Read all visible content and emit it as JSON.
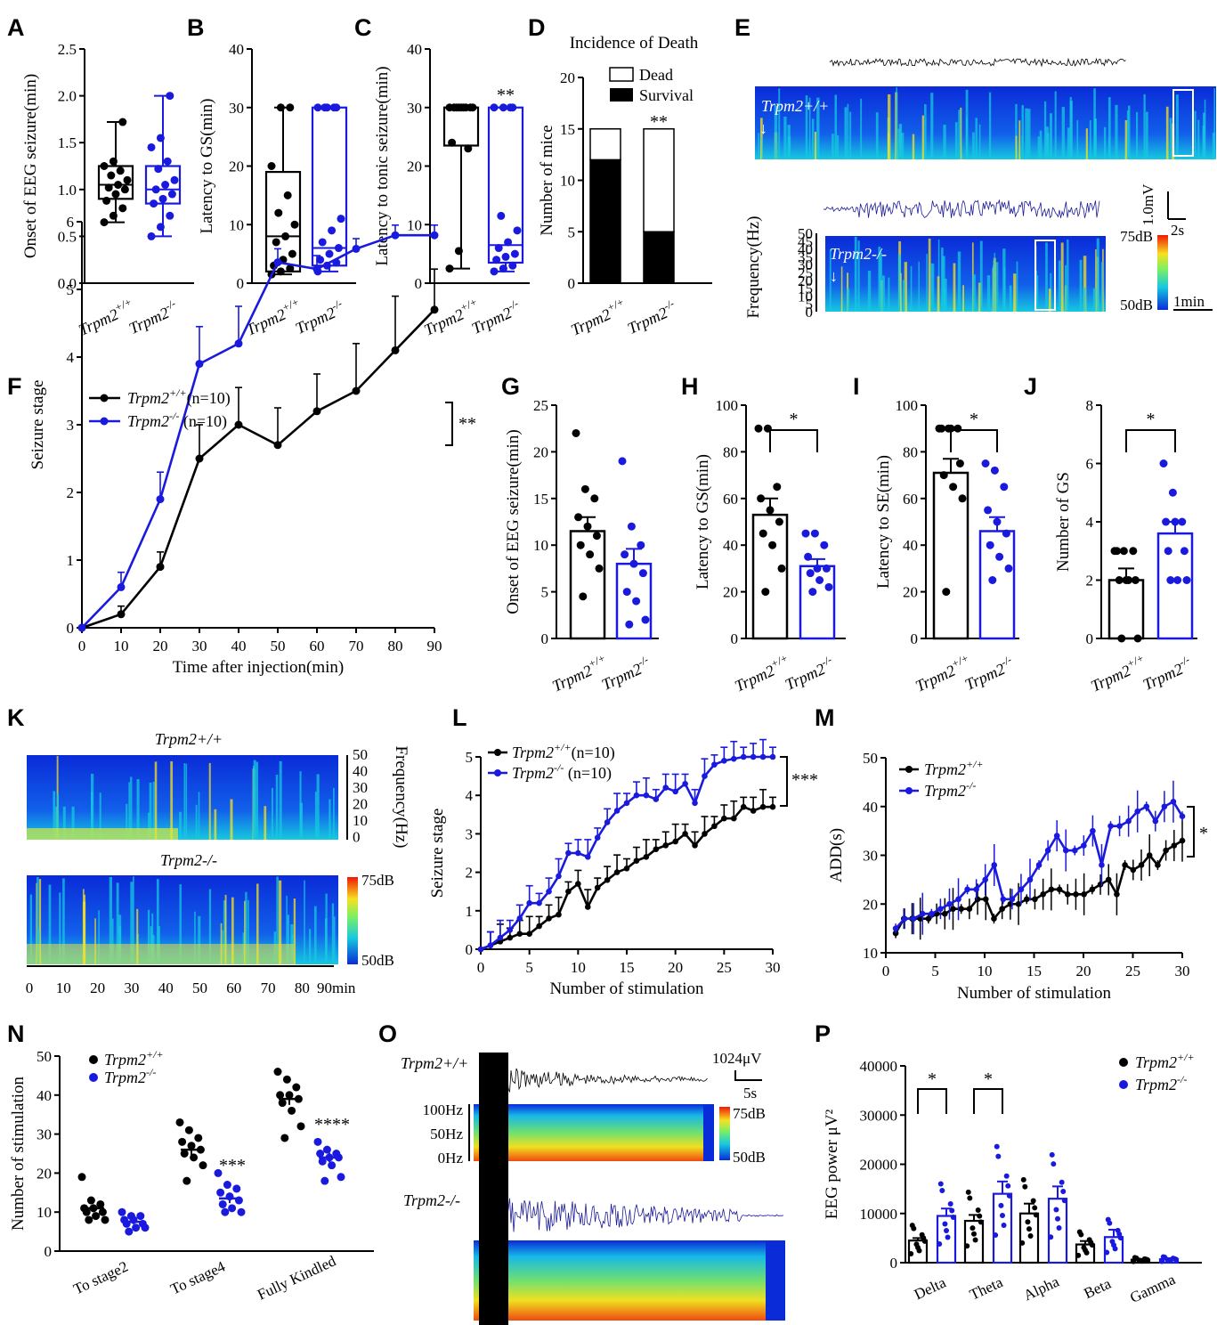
{
  "colors": {
    "wt": "#000000",
    "ko": "#1a1adf",
    "spec_low": "#0a2bd8",
    "spec_mid": "#16c8e0",
    "spec_high": "#f01808"
  },
  "groups": {
    "wt": "Trpm2",
    "wt_sup": "+/+",
    "ko": "Trpm2",
    "ko_sup": "-/-"
  },
  "panels": {
    "A": "A",
    "B": "B",
    "C": "C",
    "D": "D",
    "E": "E",
    "F": "F",
    "G": "G",
    "H": "H",
    "I": "I",
    "J": "J",
    "K": "K",
    "L": "L",
    "M": "M",
    "N": "N",
    "O": "O",
    "P": "P"
  },
  "chart_data": [
    {
      "id": "A",
      "type": "box",
      "ylabel": "Onset of EEG seizure(min)",
      "ylim": [
        0,
        2.5
      ],
      "yticks": [
        "0.0",
        "0.5",
        "1.0",
        "1.5",
        "2.0",
        "2.5"
      ],
      "boxes": [
        {
          "group": "wt",
          "min": 0.65,
          "q1": 0.9,
          "median": 1.05,
          "q3": 1.25,
          "max": 1.72
        },
        {
          "group": "ko",
          "min": 0.5,
          "q1": 0.85,
          "median": 1.0,
          "q3": 1.25,
          "max": 2.0
        }
      ],
      "points": {
        "wt": [
          0.65,
          0.72,
          0.8,
          0.88,
          0.95,
          1.0,
          1.02,
          1.05,
          1.1,
          1.15,
          1.2,
          1.25,
          1.3,
          1.72
        ],
        "ko": [
          0.5,
          0.6,
          0.72,
          0.85,
          0.9,
          0.95,
          1.0,
          1.05,
          1.1,
          1.22,
          1.3,
          1.45,
          1.55,
          2.0
        ]
      }
    },
    {
      "id": "B",
      "type": "box",
      "ylabel": "Latency to GS(min)",
      "ylim": [
        0,
        40
      ],
      "yticks": [
        "0",
        "10",
        "20",
        "30",
        "40"
      ],
      "boxes": [
        {
          "group": "wt",
          "min": 1.5,
          "q1": 2,
          "median": 8,
          "q3": 19,
          "max": 30
        },
        {
          "group": "ko",
          "min": 2,
          "q1": 3,
          "median": 6,
          "q3": 30,
          "max": 30
        }
      ],
      "points": {
        "wt": [
          1.5,
          2,
          2.5,
          3,
          4,
          5,
          7,
          8,
          10,
          12,
          15,
          20,
          30,
          30
        ],
        "ko": [
          2,
          3,
          3.5,
          4,
          5,
          6,
          7,
          9,
          11,
          30,
          30,
          30,
          30,
          30
        ]
      }
    },
    {
      "id": "C",
      "type": "box",
      "ylabel": "Latency to tonic seizure(min)",
      "ylim": [
        0,
        40
      ],
      "yticks": [
        "0",
        "10",
        "20",
        "30",
        "40"
      ],
      "sig": "**",
      "boxes": [
        {
          "group": "wt",
          "min": 2.5,
          "q1": 23.5,
          "median": 30,
          "q3": 30,
          "max": 30
        },
        {
          "group": "ko",
          "min": 2,
          "q1": 3.5,
          "median": 6.5,
          "q3": 30,
          "max": 30
        }
      ],
      "points": {
        "wt": [
          2.5,
          5.5,
          23,
          24,
          30,
          30,
          30,
          30,
          30,
          30,
          30,
          30,
          30
        ],
        "ko": [
          2,
          2.5,
          3,
          4,
          4.5,
          5,
          6,
          7,
          9,
          11.5,
          30,
          30,
          30,
          30
        ]
      }
    },
    {
      "id": "D",
      "type": "stacked-bar",
      "title": "Incidence of Death",
      "ylabel": "Number of mice",
      "ylim": [
        0,
        20
      ],
      "yticks": [
        "0",
        "5",
        "10",
        "15",
        "20"
      ],
      "sig": "**",
      "series": [
        {
          "name": "Survival",
          "values": [
            12,
            5
          ]
        },
        {
          "name": "Dead",
          "values": [
            3,
            10
          ]
        }
      ]
    },
    {
      "id": "F",
      "type": "line",
      "xlabel": "Time after injection(min)",
      "ylabel": "Seizure stage",
      "ylim": [
        0,
        6
      ],
      "x": [
        0,
        10,
        20,
        30,
        40,
        50,
        60,
        70,
        80,
        90
      ],
      "sig": "**",
      "xticks": [
        "0",
        "10",
        "20",
        "30",
        "40",
        "50",
        "60",
        "70",
        "80",
        "90"
      ],
      "yticks": [
        "0",
        "1",
        "2",
        "3",
        "4",
        "5",
        "6"
      ],
      "legend": [
        "(n=10)",
        "(n=10)"
      ],
      "series": [
        {
          "group": "wt",
          "values": [
            0,
            0.2,
            0.9,
            2.5,
            3.0,
            2.7,
            3.2,
            3.5,
            4.1,
            4.7
          ],
          "err": [
            0,
            0.12,
            0.22,
            0.5,
            0.55,
            0.55,
            0.55,
            0.7,
            0.8,
            0.6
          ]
        },
        {
          "group": "ko",
          "values": [
            0,
            0.6,
            1.9,
            3.9,
            4.2,
            5.4,
            5.3,
            5.6,
            5.8,
            5.8
          ],
          "err": [
            0,
            0.22,
            0.4,
            0.55,
            0.55,
            0.2,
            0.2,
            0.15,
            0.15,
            0.15
          ]
        }
      ]
    },
    {
      "id": "G",
      "type": "bar",
      "ylabel": "Onset of EEG seizure(min)",
      "ylim": [
        0,
        25
      ],
      "yticks": [
        "0",
        "5",
        "10",
        "15",
        "20",
        "25"
      ],
      "bars": [
        {
          "group": "wt",
          "mean": 11.5,
          "sem": 1.5
        },
        {
          "group": "ko",
          "mean": 8,
          "sem": 1.6
        }
      ],
      "points": {
        "wt": [
          22,
          16,
          15,
          13,
          12,
          11,
          10,
          9,
          7.5,
          4.5
        ],
        "ko": [
          19,
          12,
          10,
          9,
          8,
          7,
          5,
          4,
          2,
          1.5
        ]
      }
    },
    {
      "id": "H",
      "type": "bar",
      "ylabel": "Latency to GS(min)",
      "ylim": [
        0,
        100
      ],
      "yticks": [
        "0",
        "20",
        "40",
        "60",
        "80",
        "100"
      ],
      "sig": "*",
      "bars": [
        {
          "group": "wt",
          "mean": 53,
          "sem": 7
        },
        {
          "group": "ko",
          "mean": 31,
          "sem": 3
        }
      ],
      "points": {
        "wt": [
          90,
          90,
          65,
          60,
          55,
          50,
          45,
          40,
          30,
          20
        ],
        "ko": [
          45,
          45,
          40,
          35,
          30,
          30,
          28,
          25,
          22,
          20
        ]
      }
    },
    {
      "id": "I",
      "type": "bar",
      "ylabel": "Latency to SE(min)",
      "ylim": [
        0,
        100
      ],
      "yticks": [
        "0",
        "20",
        "40",
        "60",
        "80",
        "100"
      ],
      "sig": "*",
      "bars": [
        {
          "group": "wt",
          "mean": 71,
          "sem": 6
        },
        {
          "group": "ko",
          "mean": 46,
          "sem": 6
        }
      ],
      "points": {
        "wt": [
          90,
          90,
          90,
          90,
          90,
          75,
          70,
          65,
          60,
          20
        ],
        "ko": [
          75,
          72,
          65,
          55,
          50,
          45,
          40,
          35,
          30,
          25
        ]
      }
    },
    {
      "id": "J",
      "type": "bar",
      "ylabel": "Number of GS",
      "ylim": [
        0,
        8
      ],
      "yticks": [
        "0",
        "2",
        "4",
        "6",
        "8"
      ],
      "sig": "*",
      "bars": [
        {
          "group": "wt",
          "mean": 2,
          "sem": 0.4
        },
        {
          "group": "ko",
          "mean": 3.6,
          "sem": 0.4
        }
      ],
      "points": {
        "wt": [
          3,
          3,
          3,
          3,
          2,
          2,
          2,
          2,
          0,
          0
        ],
        "ko": [
          6,
          5,
          4,
          4,
          4,
          3,
          3,
          2,
          2,
          2
        ]
      }
    },
    {
      "id": "L",
      "type": "line",
      "xlabel": "Number of stimulation",
      "ylabel": "Seizure stage",
      "ylim": [
        0,
        5
      ],
      "sig": "***",
      "xticks": [
        "0",
        "5",
        "10",
        "15",
        "20",
        "25",
        "30"
      ],
      "yticks": [
        "0",
        "1",
        "2",
        "3",
        "4",
        "5"
      ],
      "legend": [
        "(n=10)",
        "(n=10)"
      ],
      "series": [
        {
          "group": "wt",
          "values": [
            0,
            0.1,
            0.2,
            0.3,
            0.4,
            0.4,
            0.6,
            0.8,
            0.9,
            1.5,
            1.7,
            1.1,
            1.6,
            1.8,
            2.0,
            2.1,
            2.3,
            2.4,
            2.6,
            2.7,
            2.8,
            3.0,
            2.7,
            3.0,
            3.2,
            3.4,
            3.4,
            3.7,
            3.6,
            3.7,
            3.7
          ]
        },
        {
          "group": "ko",
          "values": [
            0,
            0.1,
            0.3,
            0.5,
            0.8,
            1.2,
            1.2,
            1.5,
            1.9,
            2.5,
            2.5,
            2.4,
            2.9,
            3.3,
            3.6,
            3.8,
            4.0,
            4.0,
            3.9,
            4.2,
            4.1,
            4.3,
            3.8,
            4.5,
            4.8,
            4.9,
            4.95,
            5,
            5,
            5,
            5
          ]
        }
      ]
    },
    {
      "id": "M",
      "type": "line",
      "xlabel": "Number of stimulation",
      "ylabel": "ADD(s)",
      "ylim": [
        10,
        50
      ],
      "sig": "*",
      "xticks": [
        "0",
        "5",
        "10",
        "15",
        "20",
        "25",
        "30"
      ],
      "yticks": [
        "10",
        "20",
        "30",
        "40",
        "50"
      ],
      "series": [
        {
          "group": "wt",
          "values": [
            14,
            17,
            17,
            17,
            17,
            18,
            18,
            19,
            19,
            19,
            21,
            21,
            17,
            19,
            20,
            20,
            21,
            21,
            22,
            23,
            23,
            22,
            22,
            22,
            23,
            24,
            25,
            22,
            28,
            27,
            28,
            30,
            28,
            31,
            32,
            33
          ]
        },
        {
          "group": "ko",
          "values": [
            15,
            17,
            17,
            18,
            18,
            19,
            20,
            21,
            23,
            23,
            25,
            28,
            21,
            21,
            23,
            25,
            28,
            31,
            34,
            31,
            31,
            32,
            35,
            28,
            36,
            36,
            37,
            39,
            40,
            37,
            40,
            41,
            38
          ]
        }
      ]
    },
    {
      "id": "N",
      "type": "scatter",
      "ylabel": "Number of stimulation",
      "ylim": [
        0,
        50
      ],
      "yticks": [
        "0",
        "10",
        "20",
        "30",
        "40",
        "50"
      ],
      "categories": [
        "To stage2",
        "To stage4",
        "Fully Kindled"
      ],
      "sig": [
        "",
        "***",
        "****"
      ],
      "series": [
        {
          "group": "wt",
          "mean": [
            11,
            26,
            39
          ],
          "sem": [
            1,
            1.5,
            1.5
          ],
          "points": [
            [
              19,
              13,
              12,
              11,
              11,
              10,
              10,
              9,
              8,
              8
            ],
            [
              33,
              31,
              29,
              28,
              27,
              26,
              25,
              24,
              22,
              18
            ],
            [
              46,
              44,
              42,
              40,
              40,
              39,
              38,
              36,
              32,
              29
            ]
          ]
        },
        {
          "group": "ko",
          "mean": [
            7.5,
            13.5,
            24
          ],
          "sem": [
            0.6,
            1.2,
            1.2
          ],
          "points": [
            [
              10,
              9,
              9,
              8,
              8,
              7,
              7,
              6,
              6,
              5
            ],
            [
              20,
              17,
              16,
              15,
              14,
              13,
              12,
              11,
              10,
              10
            ],
            [
              28,
              26,
              25,
              25,
              24,
              24,
              23,
              22,
              19,
              18
            ]
          ]
        }
      ]
    },
    {
      "id": "P",
      "type": "bar",
      "ylabel": "EEG power μV²",
      "ylim": [
        0,
        40000
      ],
      "yticks": [
        "0",
        "10000",
        "20000",
        "30000",
        "40000"
      ],
      "categories": [
        "Delta",
        "Theta",
        "Alpha",
        "Beta",
        "Gamma"
      ],
      "sig": [
        "*",
        "*",
        "",
        "",
        ""
      ],
      "series": [
        {
          "group": "wt",
          "mean": [
            4500,
            8500,
            10000,
            3700,
            600
          ],
          "sem": [
            500,
            1200,
            2000,
            700,
            150
          ]
        },
        {
          "group": "ko",
          "mean": [
            9500,
            14000,
            13000,
            5200,
            700
          ],
          "sem": [
            1500,
            2500,
            2500,
            1500,
            200
          ]
        }
      ]
    }
  ],
  "spectro": {
    "E": {
      "freq_label": "Frequency(Hz)",
      "freq_ticks": [
        "50",
        "45",
        "40",
        "35",
        "30",
        "25",
        "20",
        "15",
        "10",
        "5",
        "0"
      ],
      "db_high": "75dB",
      "db_low": "50dB",
      "scale_mv": "1.0mV",
      "scale_s": "2s",
      "scale_min": "1min"
    },
    "K": {
      "freq_label": "Frequency(Hz)",
      "freq_ticks": [
        "50",
        "40",
        "30",
        "20",
        "10",
        "0"
      ],
      "db_high": "75dB",
      "db_low": "50dB",
      "time_ticks": [
        "0",
        "10",
        "20",
        "30",
        "40",
        "50",
        "60",
        "70",
        "80",
        "90min"
      ]
    },
    "O": {
      "freq_ticks": [
        "100Hz",
        "50Hz",
        "0Hz"
      ],
      "db_high": "75dB",
      "db_low": "50dB",
      "scale_uv": "1024μV",
      "scale_s": "5s"
    }
  }
}
